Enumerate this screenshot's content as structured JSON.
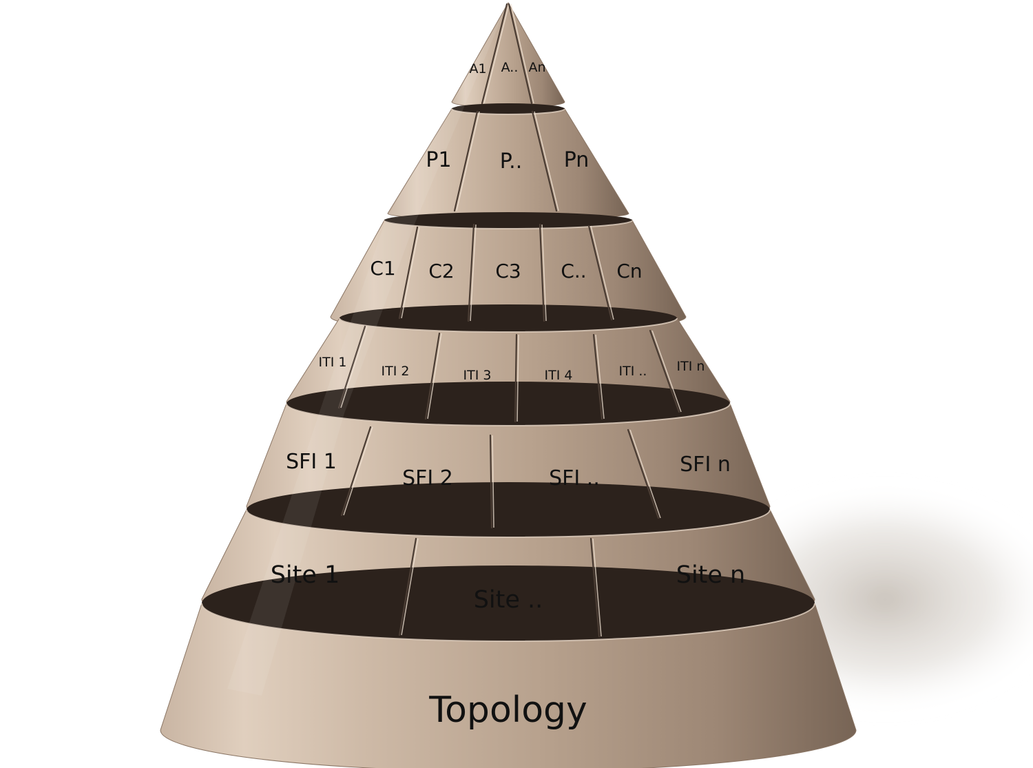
{
  "diagram": {
    "layers": [
      {
        "id": "applications",
        "segments": [
          "A1",
          "A..",
          "An"
        ]
      },
      {
        "id": "processes",
        "segments": [
          "P1",
          "P..",
          "Pn"
        ]
      },
      {
        "id": "components",
        "segments": [
          "C1",
          "C2",
          "C3",
          "C..",
          "Cn"
        ]
      },
      {
        "id": "iti",
        "segments": [
          "ITI 1",
          "ITI 2",
          "ITI 3",
          "ITI 4",
          "ITI ..",
          "ITI n"
        ]
      },
      {
        "id": "sfi",
        "segments": [
          "SFI 1",
          "SFI 2",
          "SFI ..",
          "SFI n"
        ]
      },
      {
        "id": "sites",
        "segments": [
          "Site 1",
          "Site ..",
          "Site n"
        ]
      }
    ],
    "base_label": "Topology"
  },
  "colors": {
    "surface_light": "#d9c7b6",
    "surface_mid": "#b09a86",
    "surface_dark": "#7d6a5b",
    "groove": "#2c221c",
    "shadow": "#c9c1b8"
  }
}
